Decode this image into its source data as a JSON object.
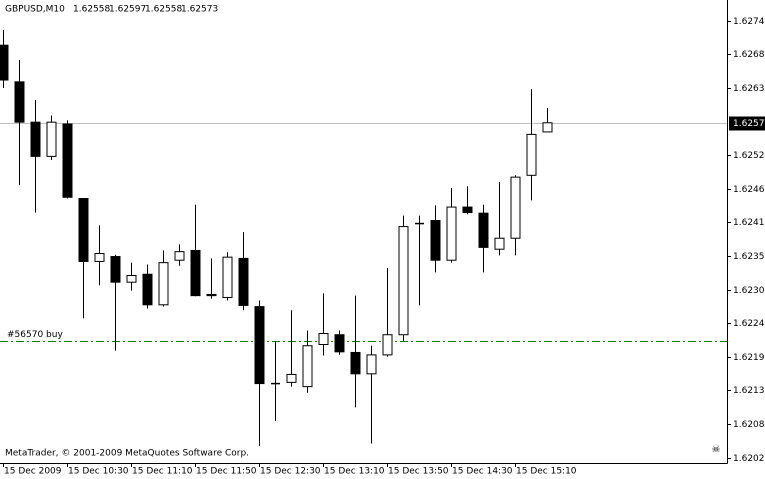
{
  "chart_data": {
    "type": "candlestick",
    "title": "GBPUSD,M10",
    "header_ohlc": [
      1.62558,
      1.62597,
      1.62558,
      1.62573
    ],
    "categories": [
      "15 Dec 2009",
      null,
      null,
      null,
      "15 Dec 10:30",
      null,
      null,
      null,
      "15 Dec 11:10",
      null,
      null,
      null,
      "15 Dec 11:50",
      null,
      null,
      null,
      "15 Dec 12:30",
      null,
      null,
      null,
      "15 Dec 13:10",
      null,
      null,
      null,
      "15 Dec 13:50",
      null,
      null,
      null,
      "15 Dec 14:30",
      null,
      null,
      null,
      "15 Dec 15:10",
      null,
      null
    ],
    "open": [
      1.627,
      1.6264,
      1.62574,
      1.62518,
      1.62571,
      1.62449,
      1.62346,
      1.62354,
      1.62312,
      1.62325,
      1.62275,
      1.62348,
      1.62364,
      1.62292,
      1.62287,
      1.62351,
      1.62272,
      1.62146,
      1.62148,
      1.62141,
      1.6221,
      1.62226,
      1.62197,
      1.62162,
      1.62193,
      1.62226,
      1.62408,
      1.62413,
      1.62348,
      1.62435,
      1.62425,
      1.62366,
      1.62384,
      1.62487,
      1.62558
    ],
    "high": [
      1.62725,
      1.62676,
      1.6261,
      1.62585,
      1.62577,
      1.62449,
      1.62405,
      1.62357,
      1.62344,
      1.62341,
      1.62364,
      1.62374,
      1.62439,
      1.62351,
      1.62361,
      1.62394,
      1.62282,
      1.62216,
      1.62266,
      1.62233,
      1.62294,
      1.62233,
      1.6229,
      1.62208,
      1.62335,
      1.62421,
      1.62421,
      1.62438,
      1.62466,
      1.62469,
      1.62439,
      1.62476,
      1.62487,
      1.62628,
      1.62597
    ],
    "low": [
      1.6263,
      1.62471,
      1.62426,
      1.62512,
      1.62449,
      1.62253,
      1.62307,
      1.622,
      1.62298,
      1.62269,
      1.62272,
      1.62339,
      1.62289,
      1.62285,
      1.62282,
      1.62266,
      1.62044,
      1.62085,
      1.62141,
      1.62131,
      1.62192,
      1.62193,
      1.62107,
      1.62048,
      1.6219,
      1.62216,
      1.62274,
      1.62328,
      1.62344,
      1.62423,
      1.62328,
      1.62356,
      1.62356,
      1.62446,
      1.62558
    ],
    "close": [
      1.62643,
      1.62574,
      1.62518,
      1.62574,
      1.62451,
      1.62346,
      1.62359,
      1.62312,
      1.62323,
      1.62275,
      1.62344,
      1.62362,
      1.6229,
      1.6229,
      1.62353,
      1.62274,
      1.62146,
      1.62146,
      1.62161,
      1.62208,
      1.62228,
      1.62198,
      1.62162,
      1.62193,
      1.62226,
      1.62403,
      1.62408,
      1.62348,
      1.62435,
      1.62426,
      1.62369,
      1.62384,
      1.62484,
      1.62554,
      1.62573
    ],
    "up_color": "#ffffff",
    "down_color": "#000000",
    "ylim": [
      1.62016,
      1.62774
    ],
    "yticks": [
      {
        "value": 1.6274,
        "label": "1.62740"
      },
      1.62685,
      {
        "value": 1.6263,
        "label": "1.62630"
      },
      {
        "value": 1.6252,
        "label": "1.62520"
      },
      1.62465,
      {
        "value": 1.6241,
        "label": "1.62410"
      },
      1.62355,
      {
        "value": 1.623,
        "label": "1.62300"
      },
      1.62245,
      {
        "value": 1.6219,
        "label": "1.62190"
      },
      1.62135,
      {
        "value": 1.6208,
        "label": "1.62080"
      },
      1.62025
    ],
    "current_price": 1.62573,
    "order": {
      "label": "#56570 buy",
      "price": 1.62216,
      "color": "#008000"
    },
    "footer": "MetaTrader, © 2001-2009 MetaQuotes Software Corp."
  }
}
